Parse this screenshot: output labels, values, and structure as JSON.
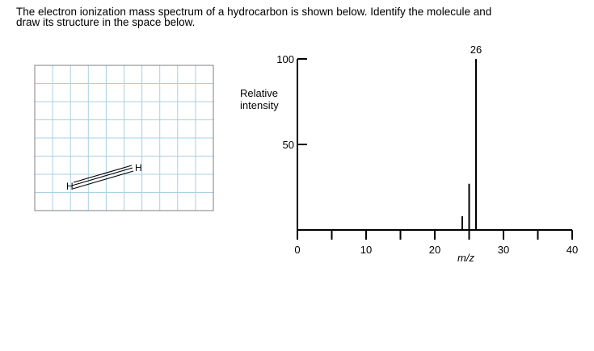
{
  "question": {
    "line1": "The electron ionization mass spectrum of a hydrocarbon is shown below. Identify the molecule and",
    "line2": "draw its structure in the space below."
  },
  "drawing_area": {
    "grid_color": "#a9d0e4",
    "border_color": "#7f7f7f",
    "structure_atoms": {
      "left": "H",
      "right": "H"
    },
    "bond_order": 3
  },
  "chart_data": {
    "type": "bar",
    "ylabel_line1": "Relative",
    "ylabel_line2": "intensity",
    "xlabel": "m/z",
    "xlim": [
      0,
      40
    ],
    "ylim": [
      0,
      100
    ],
    "x_ticks_labeled": [
      0,
      10,
      20,
      30,
      40
    ],
    "x_ticks_minor": [
      5,
      15,
      25,
      35
    ],
    "y_ticks_labeled": [
      50,
      100
    ],
    "peaks": [
      {
        "mz": 24,
        "intensity": 8
      },
      {
        "mz": 25,
        "intensity": 27
      },
      {
        "mz": 26,
        "intensity": 100,
        "label": "26"
      }
    ]
  }
}
